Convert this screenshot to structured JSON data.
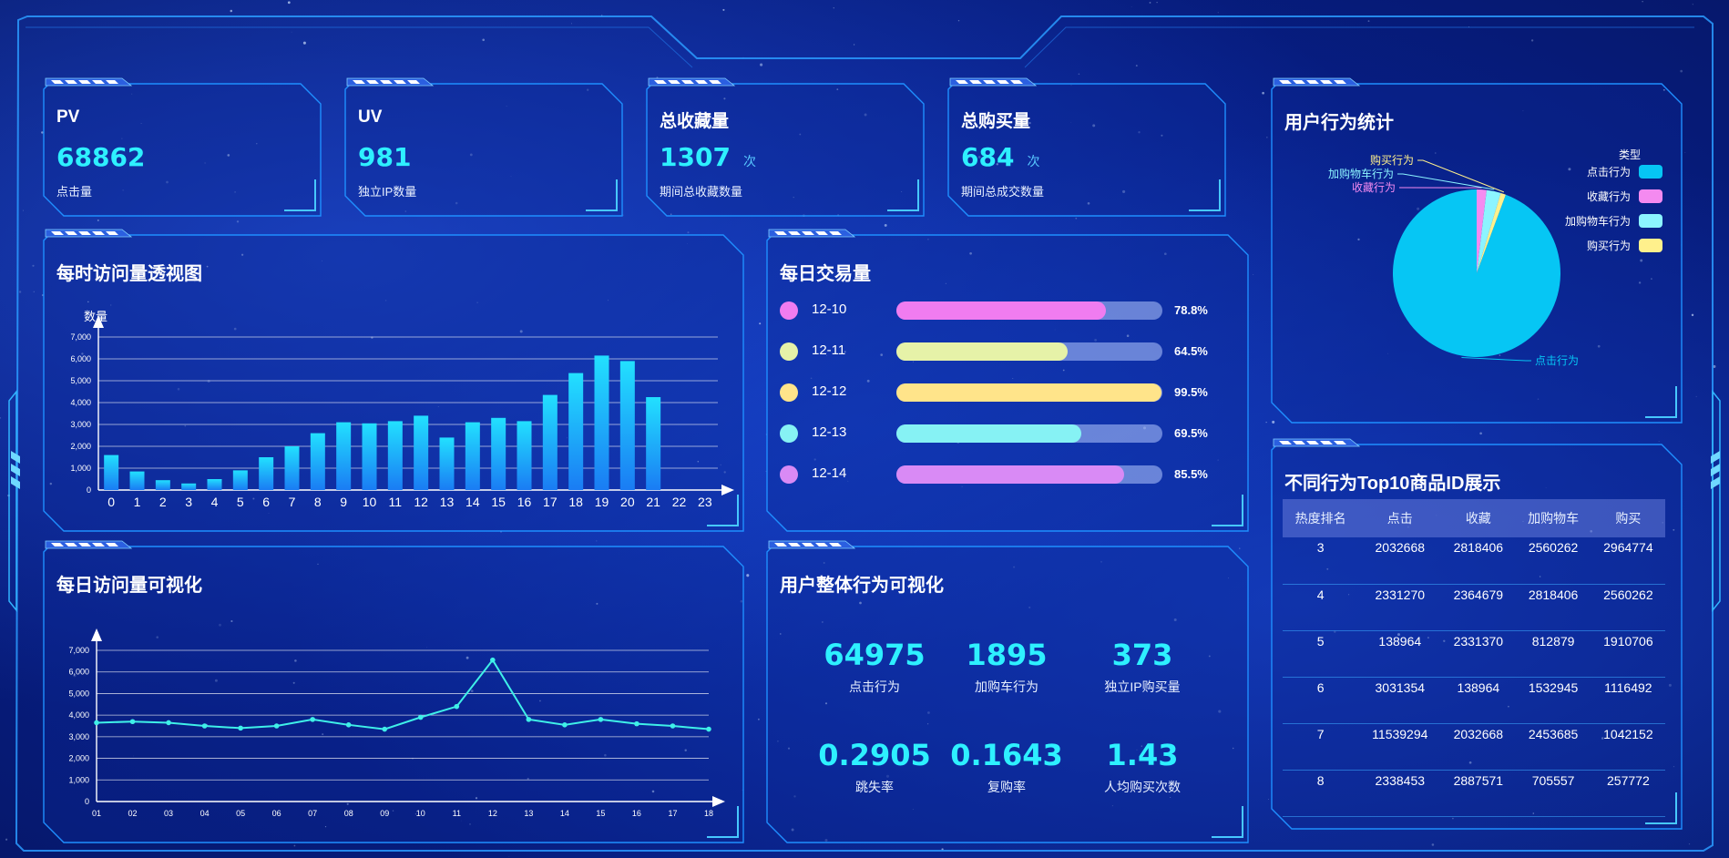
{
  "header": {
    "title": ""
  },
  "kpis": [
    {
      "label": "PV",
      "value": "68862",
      "unit": "",
      "sub": "点击量"
    },
    {
      "label": "UV",
      "value": "981",
      "unit": "",
      "sub": "独立IP数量"
    },
    {
      "label": "总收藏量",
      "value": "1307",
      "unit": "次",
      "sub": "期间总收藏数量"
    },
    {
      "label": "总购买量",
      "value": "684",
      "unit": "次",
      "sub": "期间总成交数量"
    }
  ],
  "hourly": {
    "title": "每时访问量透视图",
    "chart_data": {
      "type": "bar",
      "ylabel": "数量",
      "ylim": [
        0,
        7000
      ],
      "yticks": [
        "0",
        "1,000",
        "2,000",
        "3,000",
        "4,000",
        "5,000",
        "6,000",
        "7,000"
      ],
      "categories": [
        "0",
        "1",
        "2",
        "3",
        "4",
        "5",
        "6",
        "7",
        "8",
        "9",
        "10",
        "11",
        "12",
        "13",
        "14",
        "15",
        "16",
        "17",
        "18",
        "19",
        "20",
        "21",
        "22",
        "23"
      ],
      "values": [
        1600,
        850,
        450,
        300,
        500,
        900,
        1500,
        2000,
        2600,
        3100,
        3050,
        3150,
        3400,
        2400,
        3100,
        3300,
        3150,
        4350,
        5350,
        6150,
        5900,
        4250,
        0,
        0
      ],
      "color": "#1bd0ff"
    }
  },
  "daily_visits": {
    "title": "每日访问量可视化",
    "chart_data": {
      "type": "line",
      "ylim": [
        0,
        7000
      ],
      "yticks": [
        "0",
        "1,000",
        "2,000",
        "3,000",
        "4,000",
        "5,000",
        "6,000",
        "7,000"
      ],
      "categories": [
        "01",
        "02",
        "03",
        "04",
        "05",
        "06",
        "07",
        "08",
        "09",
        "10",
        "11",
        "12",
        "13",
        "14",
        "15",
        "16",
        "17",
        "18"
      ],
      "values": [
        3650,
        3700,
        3650,
        3500,
        3400,
        3500,
        3800,
        3550,
        3350,
        3900,
        4400,
        6550,
        3800,
        3550,
        3800,
        3600,
        3500,
        3350
      ],
      "color": "#3ff0e8"
    }
  },
  "daily_trade": {
    "title": "每日交易量",
    "rows": [
      {
        "date": "12-10",
        "pct": "78.8%",
        "value": 78.8,
        "color": "#f07cf0"
      },
      {
        "date": "12-11",
        "pct": "64.5%",
        "value": 64.5,
        "color": "#e6f2a8"
      },
      {
        "date": "12-12",
        "pct": "99.5%",
        "value": 99.5,
        "color": "#ffe48a"
      },
      {
        "date": "12-13",
        "pct": "69.5%",
        "value": 69.5,
        "color": "#86f2f4"
      },
      {
        "date": "12-14",
        "pct": "85.5%",
        "value": 85.5,
        "color": "#d98af5"
      }
    ]
  },
  "overall": {
    "title": "用户整体行为可视化",
    "stats": [
      {
        "value": "64975",
        "label": "点击行为"
      },
      {
        "value": "1895",
        "label": "加购车行为"
      },
      {
        "value": "373",
        "label": "独立IP购买量"
      },
      {
        "value": "0.2905",
        "label": "跳失率"
      },
      {
        "value": "0.1643",
        "label": "复购率"
      },
      {
        "value": "1.43",
        "label": "人均购买次数"
      }
    ]
  },
  "behavior": {
    "title": "用户行为统计",
    "chart_data": {
      "type": "pie",
      "legend_title": "类型",
      "legend_placement": "top-right",
      "slices": [
        {
          "name": "点击行为",
          "value": 64975,
          "color": "#06c6f4"
        },
        {
          "name": "收藏行为",
          "value": 1307,
          "color": "#f48af0"
        },
        {
          "name": "加购物车行为",
          "value": 1895,
          "color": "#8cf4ff"
        },
        {
          "name": "购买行为",
          "value": 684,
          "color": "#fff08c"
        }
      ]
    }
  },
  "top10": {
    "title": "不同行为Top10商品ID展示",
    "headers": [
      "热度排名",
      "点击",
      "收藏",
      "加购物车",
      "购买"
    ],
    "rows": [
      [
        "3",
        "2032668",
        "2818406",
        "2560262",
        "2964774"
      ],
      [
        "4",
        "2331270",
        "2364679",
        "2818406",
        "2560262"
      ],
      [
        "5",
        "138964",
        "2331370",
        "812879",
        "1910706"
      ],
      [
        "6",
        "3031354",
        "138964",
        "1532945",
        "1116492"
      ],
      [
        "7",
        "11539294",
        "2032668",
        "2453685",
        "1042152"
      ],
      [
        "8",
        "2338453",
        "2887571",
        "705557",
        "257772"
      ]
    ]
  }
}
